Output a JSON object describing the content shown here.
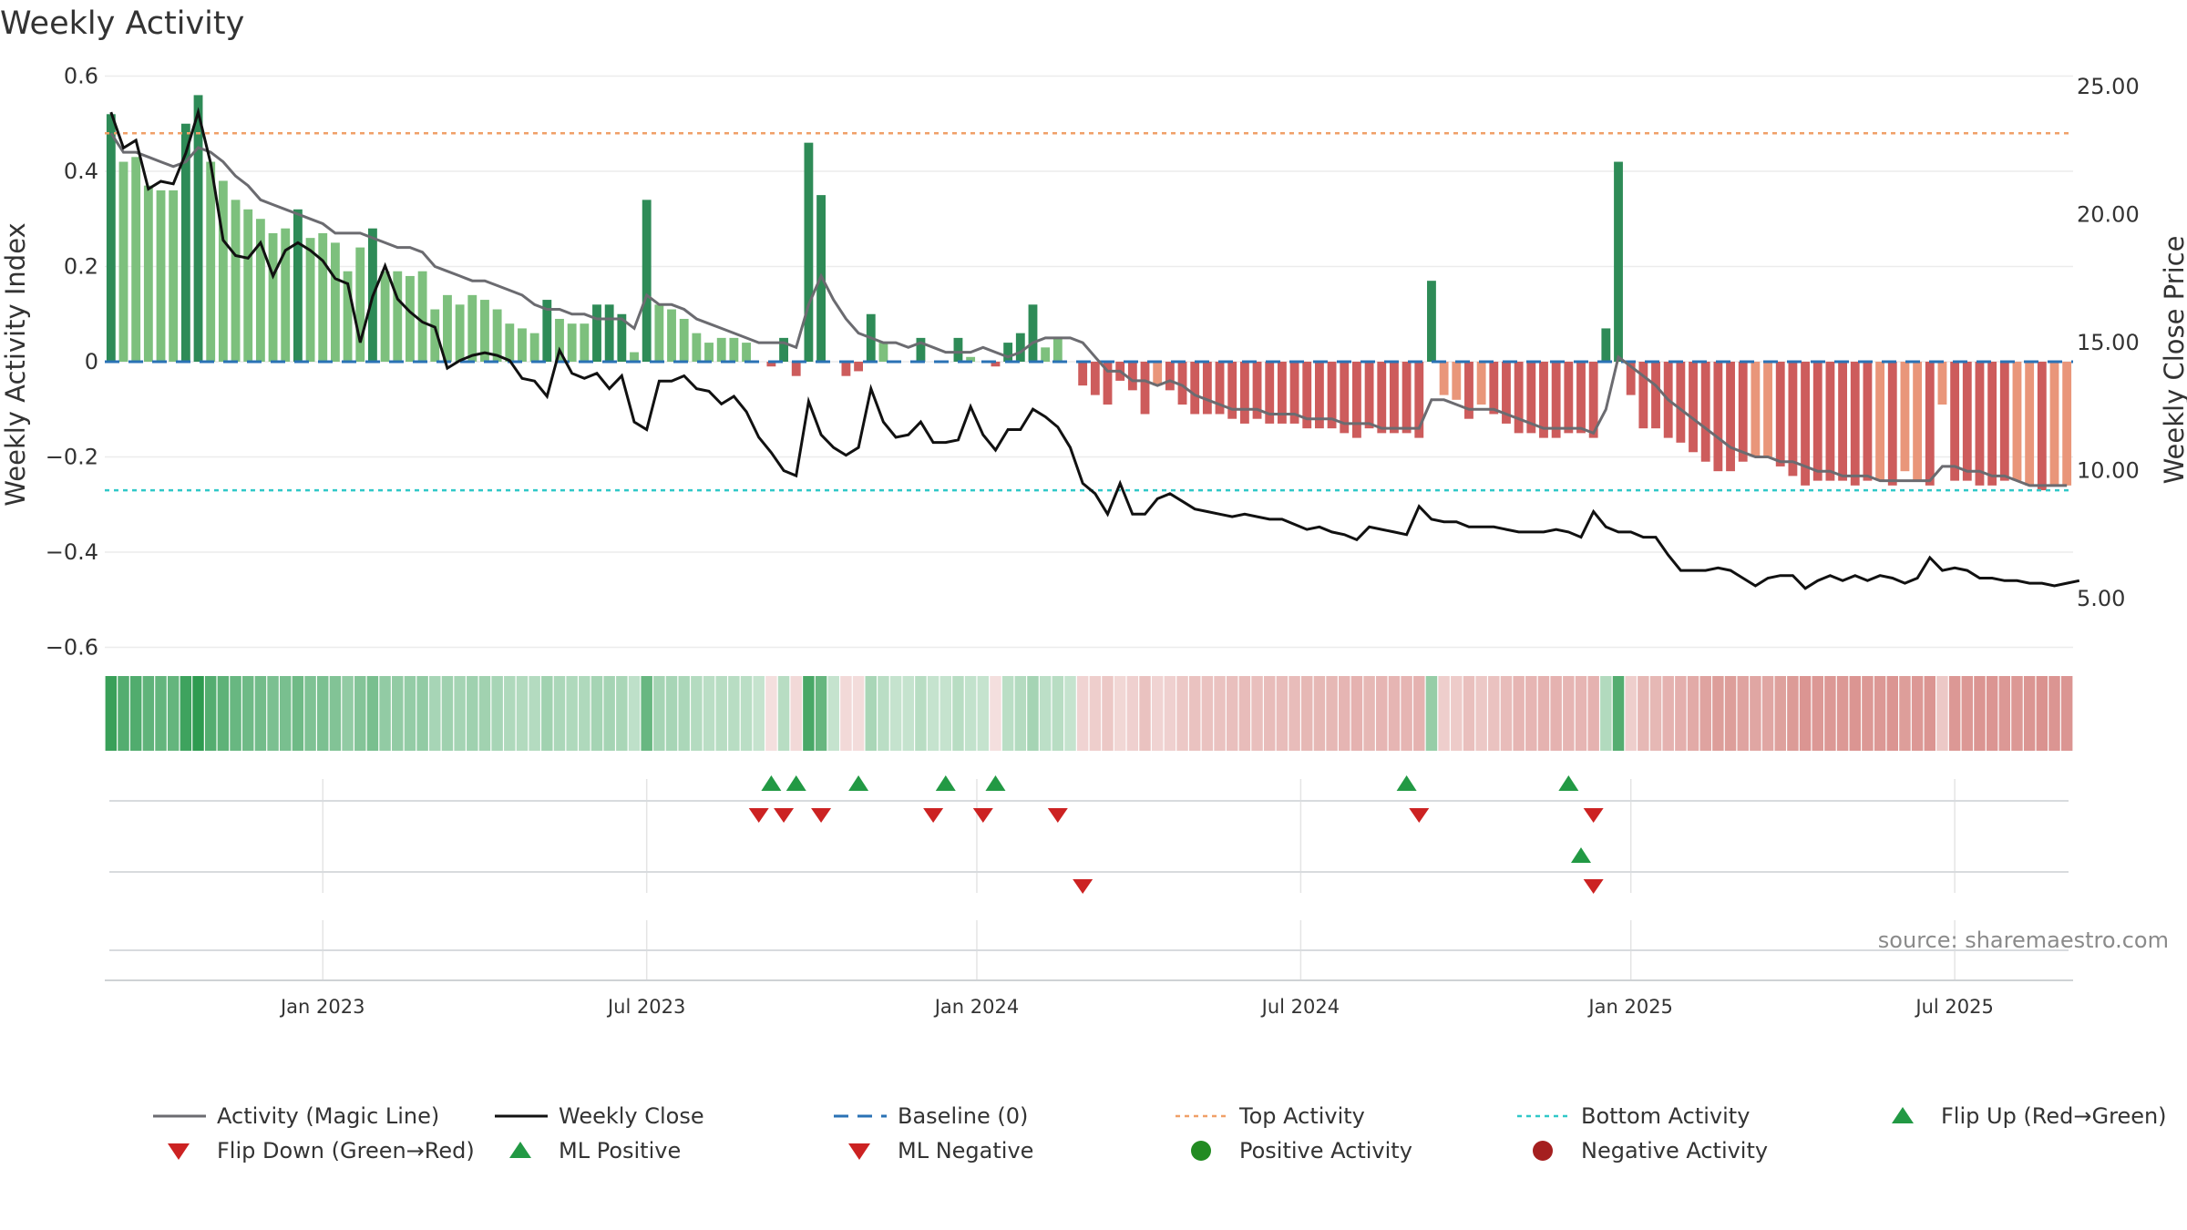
{
  "chart_data": {
    "type": "bar",
    "title": "Weekly Activity",
    "ylabel": "Weekly Activity Index",
    "y2label": "Weekly Close Price",
    "ylim": [
      -0.7,
      0.6
    ],
    "y2lim": [
      3.2,
      25.0
    ],
    "yticks": [
      0.6,
      0.4,
      0.2,
      0,
      -0.2,
      -0.4,
      -0.6
    ],
    "ytick_labels": [
      "0.6",
      "0.4",
      "0.2",
      "0",
      "−0.2",
      "−0.4",
      "−0.6"
    ],
    "y2ticks": [
      25.0,
      20.0,
      15.0,
      10.0,
      5.0
    ],
    "y2tick_labels": [
      "25.00",
      "20.00",
      "15.00",
      "10.00",
      "5.00"
    ],
    "xticks": [
      {
        "label": "Jan 2023",
        "week": 17.5
      },
      {
        "label": "Jul 2023",
        "week": 43.5
      },
      {
        "label": "Jan 2024",
        "week": 70
      },
      {
        "label": "Jul 2024",
        "week": 96
      },
      {
        "label": "Jan 2025",
        "week": 122.5
      },
      {
        "label": "Jul 2025",
        "week": 148.5
      }
    ],
    "top_activity": 0.48,
    "bottom_activity": -0.27,
    "activity": [
      0.52,
      0.42,
      0.43,
      0.37,
      0.36,
      0.36,
      0.5,
      0.56,
      0.42,
      0.38,
      0.34,
      0.32,
      0.3,
      0.27,
      0.28,
      0.32,
      0.26,
      0.27,
      0.25,
      0.19,
      0.24,
      0.28,
      0.19,
      0.19,
      0.18,
      0.19,
      0.11,
      0.14,
      0.12,
      0.14,
      0.13,
      0.11,
      0.08,
      0.07,
      0.06,
      0.13,
      0.09,
      0.08,
      0.08,
      0.12,
      0.12,
      0.1,
      0.02,
      0.34,
      0.12,
      0.11,
      0.09,
      0.06,
      0.04,
      0.05,
      0.05,
      0.04,
      0.0,
      -0.01,
      0.05,
      -0.03,
      0.46,
      0.35,
      0.0,
      -0.03,
      -0.02,
      0.1,
      0.04,
      0.0,
      0.0,
      0.05,
      0.0,
      0.0,
      0.05,
      0.01,
      0.0,
      -0.01,
      0.04,
      0.06,
      0.12,
      0.03,
      0.05,
      0.0,
      -0.05,
      -0.07,
      -0.09,
      -0.04,
      -0.06,
      -0.11,
      -0.05,
      -0.06,
      -0.09,
      -0.11,
      -0.11,
      -0.11,
      -0.12,
      -0.13,
      -0.12,
      -0.13,
      -0.13,
      -0.13,
      -0.14,
      -0.14,
      -0.14,
      -0.15,
      -0.16,
      -0.14,
      -0.15,
      -0.15,
      -0.15,
      -0.16,
      0.17,
      -0.07,
      -0.08,
      -0.12,
      -0.09,
      -0.11,
      -0.13,
      -0.15,
      -0.15,
      -0.16,
      -0.16,
      -0.15,
      -0.15,
      -0.16,
      0.07,
      0.42,
      -0.07,
      -0.14,
      -0.14,
      -0.16,
      -0.17,
      -0.19,
      -0.21,
      -0.23,
      -0.23,
      -0.21,
      -0.2,
      -0.2,
      -0.22,
      -0.24,
      -0.26,
      -0.25,
      -0.25,
      -0.25,
      -0.26,
      -0.25,
      -0.25,
      -0.26,
      -0.23,
      -0.25,
      -0.26,
      -0.09,
      -0.25,
      -0.25,
      -0.26,
      -0.26,
      -0.25,
      -0.25,
      -0.26,
      -0.27,
      -0.26,
      -0.26
    ],
    "magic_line": [
      0.48,
      0.44,
      0.44,
      0.43,
      0.42,
      0.41,
      0.42,
      0.45,
      0.44,
      0.42,
      0.39,
      0.37,
      0.34,
      0.33,
      0.32,
      0.31,
      0.3,
      0.29,
      0.27,
      0.27,
      0.27,
      0.26,
      0.25,
      0.24,
      0.24,
      0.23,
      0.2,
      0.19,
      0.18,
      0.17,
      0.17,
      0.16,
      0.15,
      0.14,
      0.12,
      0.11,
      0.11,
      0.1,
      0.1,
      0.09,
      0.09,
      0.09,
      0.07,
      0.14,
      0.12,
      0.12,
      0.11,
      0.09,
      0.08,
      0.07,
      0.06,
      0.05,
      0.04,
      0.04,
      0.04,
      0.03,
      0.12,
      0.18,
      0.13,
      0.09,
      0.06,
      0.05,
      0.04,
      0.04,
      0.03,
      0.04,
      0.03,
      0.02,
      0.02,
      0.02,
      0.03,
      0.02,
      0.01,
      0.02,
      0.04,
      0.05,
      0.05,
      0.05,
      0.04,
      0.01,
      -0.02,
      -0.02,
      -0.04,
      -0.04,
      -0.05,
      -0.04,
      -0.05,
      -0.07,
      -0.08,
      -0.09,
      -0.1,
      -0.1,
      -0.1,
      -0.11,
      -0.11,
      -0.11,
      -0.12,
      -0.12,
      -0.12,
      -0.13,
      -0.13,
      -0.13,
      -0.14,
      -0.14,
      -0.14,
      -0.14,
      -0.08,
      -0.08,
      -0.09,
      -0.1,
      -0.1,
      -0.1,
      -0.11,
      -0.12,
      -0.13,
      -0.14,
      -0.14,
      -0.14,
      -0.14,
      -0.15,
      -0.1,
      0.01,
      -0.01,
      -0.03,
      -0.05,
      -0.08,
      -0.1,
      -0.12,
      -0.14,
      -0.16,
      -0.18,
      -0.19,
      -0.2,
      -0.2,
      -0.21,
      -0.21,
      -0.22,
      -0.23,
      -0.23,
      -0.24,
      -0.24,
      -0.24,
      -0.25,
      -0.25,
      -0.25,
      -0.25,
      -0.25,
      -0.22,
      -0.22,
      -0.23,
      -0.23,
      -0.24,
      -0.24,
      -0.25,
      -0.26,
      -0.26,
      -0.26,
      -0.26
    ],
    "weekly_close": [
      24.0,
      22.6,
      22.9,
      21.0,
      21.3,
      21.2,
      22.4,
      24.0,
      22.0,
      19.0,
      18.4,
      18.3,
      18.9,
      17.6,
      18.6,
      18.9,
      18.6,
      18.2,
      17.5,
      17.3,
      15.0,
      16.8,
      18.0,
      16.7,
      16.2,
      15.8,
      15.6,
      14.0,
      14.3,
      14.5,
      14.6,
      14.5,
      14.3,
      13.6,
      13.5,
      12.9,
      14.7,
      13.8,
      13.6,
      13.8,
      13.2,
      13.7,
      11.9,
      11.6,
      13.5,
      13.5,
      13.7,
      13.2,
      13.1,
      12.6,
      12.9,
      12.3,
      11.3,
      10.7,
      10.0,
      9.8,
      12.7,
      11.4,
      10.9,
      10.6,
      10.9,
      13.2,
      11.9,
      11.3,
      11.4,
      11.9,
      11.1,
      11.1,
      11.2,
      12.5,
      11.4,
      10.8,
      11.6,
      11.6,
      12.4,
      12.1,
      11.7,
      10.9,
      9.5,
      9.1,
      8.3,
      9.5,
      8.3,
      8.3,
      8.9,
      9.1,
      8.8,
      8.5,
      8.4,
      8.3,
      8.2,
      8.3,
      8.2,
      8.1,
      8.1,
      7.9,
      7.7,
      7.8,
      7.6,
      7.5,
      7.3,
      7.8,
      7.7,
      7.6,
      7.5,
      8.6,
      8.1,
      8.0,
      8.0,
      7.8,
      7.8,
      7.8,
      7.7,
      7.6,
      7.6,
      7.6,
      7.7,
      7.6,
      7.4,
      8.4,
      7.8,
      7.6,
      7.6,
      7.4,
      7.4,
      6.7,
      6.1,
      6.1,
      6.1,
      6.2,
      6.1,
      5.8,
      5.5,
      5.8,
      5.9,
      5.9,
      5.4,
      5.7,
      5.9,
      5.7,
      5.9,
      5.7,
      5.9,
      5.8,
      5.6,
      5.8,
      6.6,
      6.1,
      6.2,
      6.1,
      5.8,
      5.8,
      5.7,
      5.7,
      5.6,
      5.6,
      5.5,
      5.6,
      5.7
    ],
    "flip_up": [
      53,
      55,
      60,
      67,
      71,
      104,
      117
    ],
    "flip_down": [
      52,
      54,
      57,
      66,
      70,
      76,
      105,
      119
    ],
    "ml_positive": [
      118
    ],
    "ml_negative": [
      78,
      119
    ],
    "source": "source: sharemaestro.com",
    "legend": [
      "Activity (Magic Line)",
      "Weekly Close",
      "Baseline (0)",
      "Top Activity",
      "Bottom Activity",
      "Flip Up (Red→Green)",
      "Flip Down (Green→Red)",
      "ML Positive",
      "ML Negative",
      "Positive Activity",
      "Negative Activity"
    ],
    "colors": {
      "pos_strong": "#2e8b57",
      "pos_light": "#7dc07d",
      "neg_strong": "#cd5c5c",
      "neg_light": "#e9967a",
      "magic_line": "#6b6b70",
      "close": "#111111",
      "baseline": "#2a72b5",
      "top_line": "#f0a068",
      "bottom_line": "#30c8c8",
      "marker_up": "#229944",
      "marker_down": "#cc2222",
      "dot_positive": "#228b22",
      "dot_negative": "#a51f1f"
    }
  }
}
